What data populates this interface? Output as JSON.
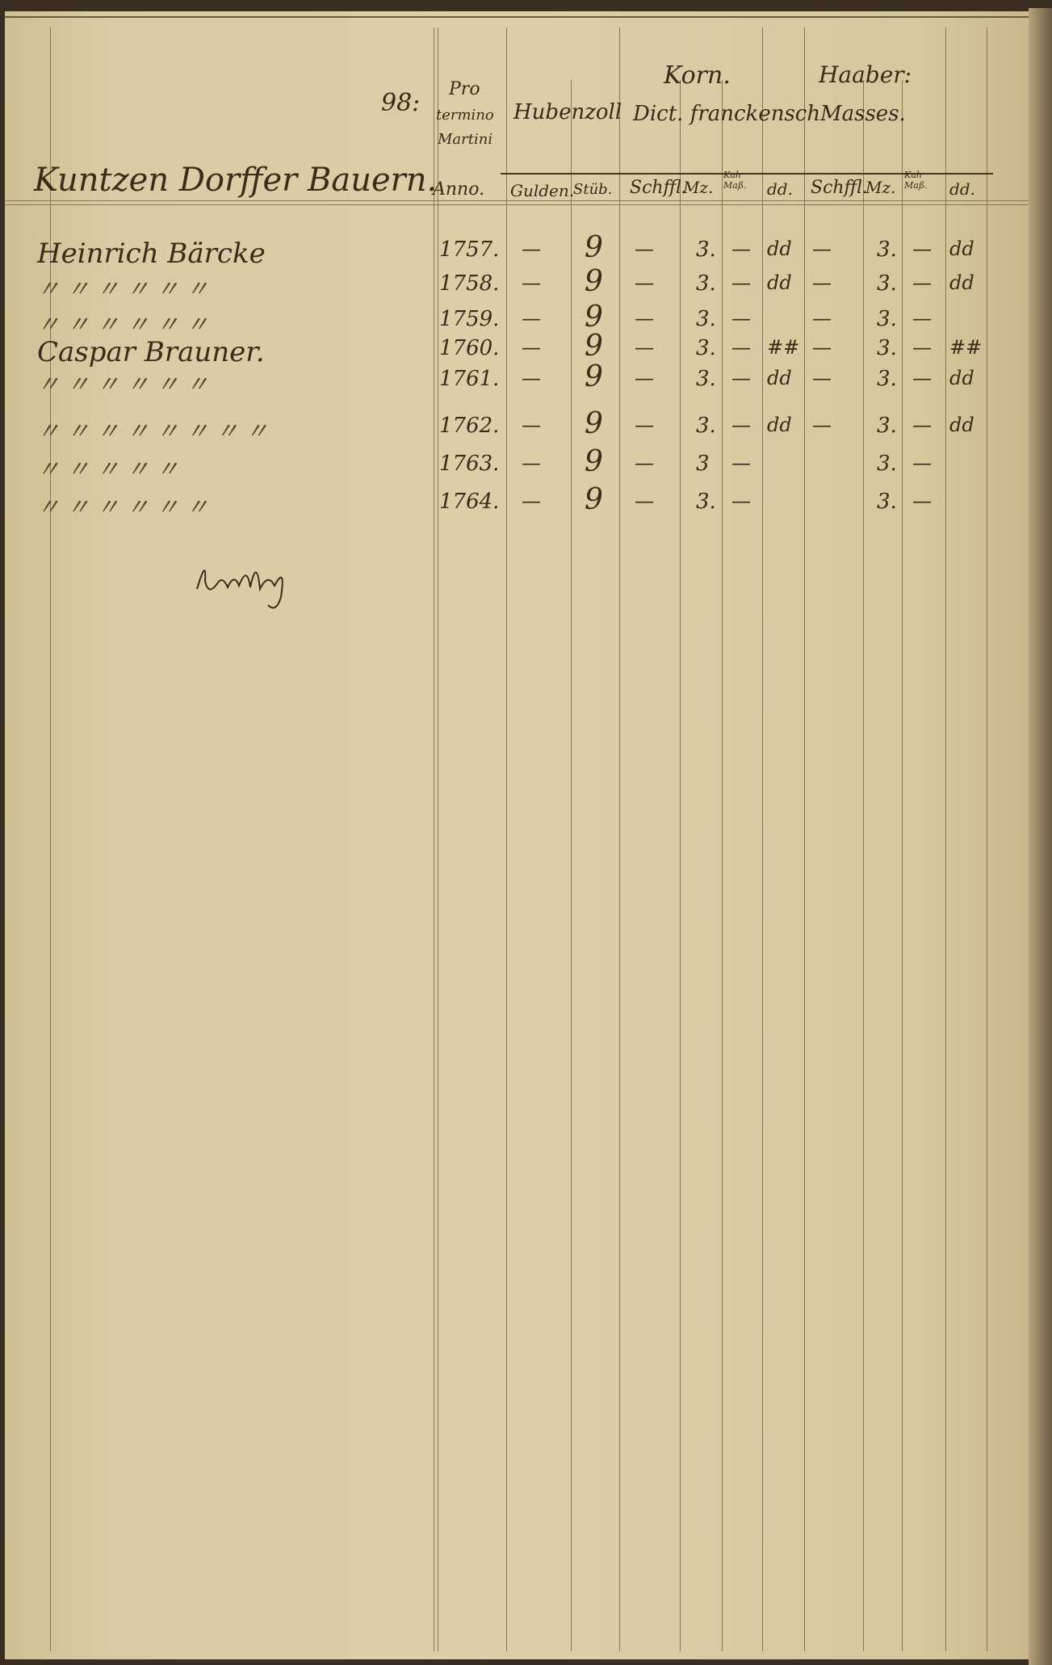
{
  "page_number": "98:",
  "header": {
    "title": "Kuntzen Dorffer Bauern.",
    "pro_termino": [
      "Pro",
      "termino",
      "Martini"
    ],
    "anno_label": "Anno.",
    "group_hubenzoll": "Hubenzoll",
    "group_korn_top": "Korn.",
    "group_korn": "Dict. franckensch",
    "group_haber_top": "Haaber:",
    "group_haber": "Masses.",
    "columns": [
      "Gulden.",
      "Stüb.",
      "Schffl.",
      "Mz.",
      "Kuh Maß.",
      "dd.",
      "Schffl.",
      "Mz.",
      "Kuh Maß.",
      "dd."
    ]
  },
  "rows": [
    {
      "name": "Heinrich Bärcke",
      "year": "1757.",
      "gulden": "—",
      "stueber": "9",
      "korn_schffl": "—",
      "korn_mz": "3.",
      "korn_mass": "—",
      "korn_dd": "dd",
      "haber_schffl": "—",
      "haber_mz": "3.",
      "haber_mass": "—",
      "haber_dd": "dd"
    },
    {
      "name": "〃 〃 〃 〃 〃 〃",
      "year": "1758.",
      "gulden": "—",
      "stueber": "9",
      "korn_schffl": "—",
      "korn_mz": "3.",
      "korn_mass": "—",
      "korn_dd": "dd",
      "haber_schffl": "—",
      "haber_mz": "3.",
      "haber_mass": "—",
      "haber_dd": "dd"
    },
    {
      "name": "〃 〃 〃 〃 〃 〃",
      "year": "1759.",
      "gulden": "—",
      "stueber": "9",
      "korn_schffl": "—",
      "korn_mz": "3.",
      "korn_mass": "—",
      "korn_dd": "",
      "haber_schffl": "—",
      "haber_mz": "3.",
      "haber_mass": "—",
      "haber_dd": ""
    },
    {
      "name": "Caspar Brauner.",
      "year": "1760.",
      "gulden": "—",
      "stueber": "9",
      "korn_schffl": "—",
      "korn_mz": "3.",
      "korn_mass": "—",
      "korn_dd": "##",
      "haber_schffl": "—",
      "haber_mz": "3.",
      "haber_mass": "—",
      "haber_dd": "##"
    },
    {
      "name": "〃 〃 〃 〃 〃 〃",
      "year": "1761.",
      "gulden": "—",
      "stueber": "9",
      "korn_schffl": "—",
      "korn_mz": "3.",
      "korn_mass": "—",
      "korn_dd": "dd",
      "haber_schffl": "—",
      "haber_mz": "3.",
      "haber_mass": "—",
      "haber_dd": "dd"
    },
    {
      "name": "〃 〃 〃 〃 〃 〃 〃 〃",
      "year": "1762.",
      "gulden": "—",
      "stueber": "9",
      "korn_schffl": "—",
      "korn_mz": "3.",
      "korn_mass": "—",
      "korn_dd": "dd",
      "haber_schffl": "—",
      "haber_mz": "3.",
      "haber_mass": "—",
      "haber_dd": "dd"
    },
    {
      "name": "〃 〃 〃 〃 〃",
      "year": "1763.",
      "gulden": "—",
      "stueber": "9",
      "korn_schffl": "—",
      "korn_mz": "3",
      "korn_mass": "—",
      "korn_dd": "",
      "haber_schffl": "",
      "haber_mz": "3.",
      "haber_mass": "—",
      "haber_dd": ""
    },
    {
      "name": "〃 〃 〃 〃 〃 〃",
      "year": "1764.",
      "gulden": "—",
      "stueber": "9",
      "korn_schffl": "—",
      "korn_mz": "3.",
      "korn_mass": "—",
      "korn_dd": "",
      "haber_schffl": "",
      "haber_mz": "3.",
      "haber_mass": "—",
      "haber_dd": ""
    }
  ],
  "colors": {
    "paper": "#d9cba3",
    "ink": "#3d2a18",
    "rule": "#8a7556"
  }
}
